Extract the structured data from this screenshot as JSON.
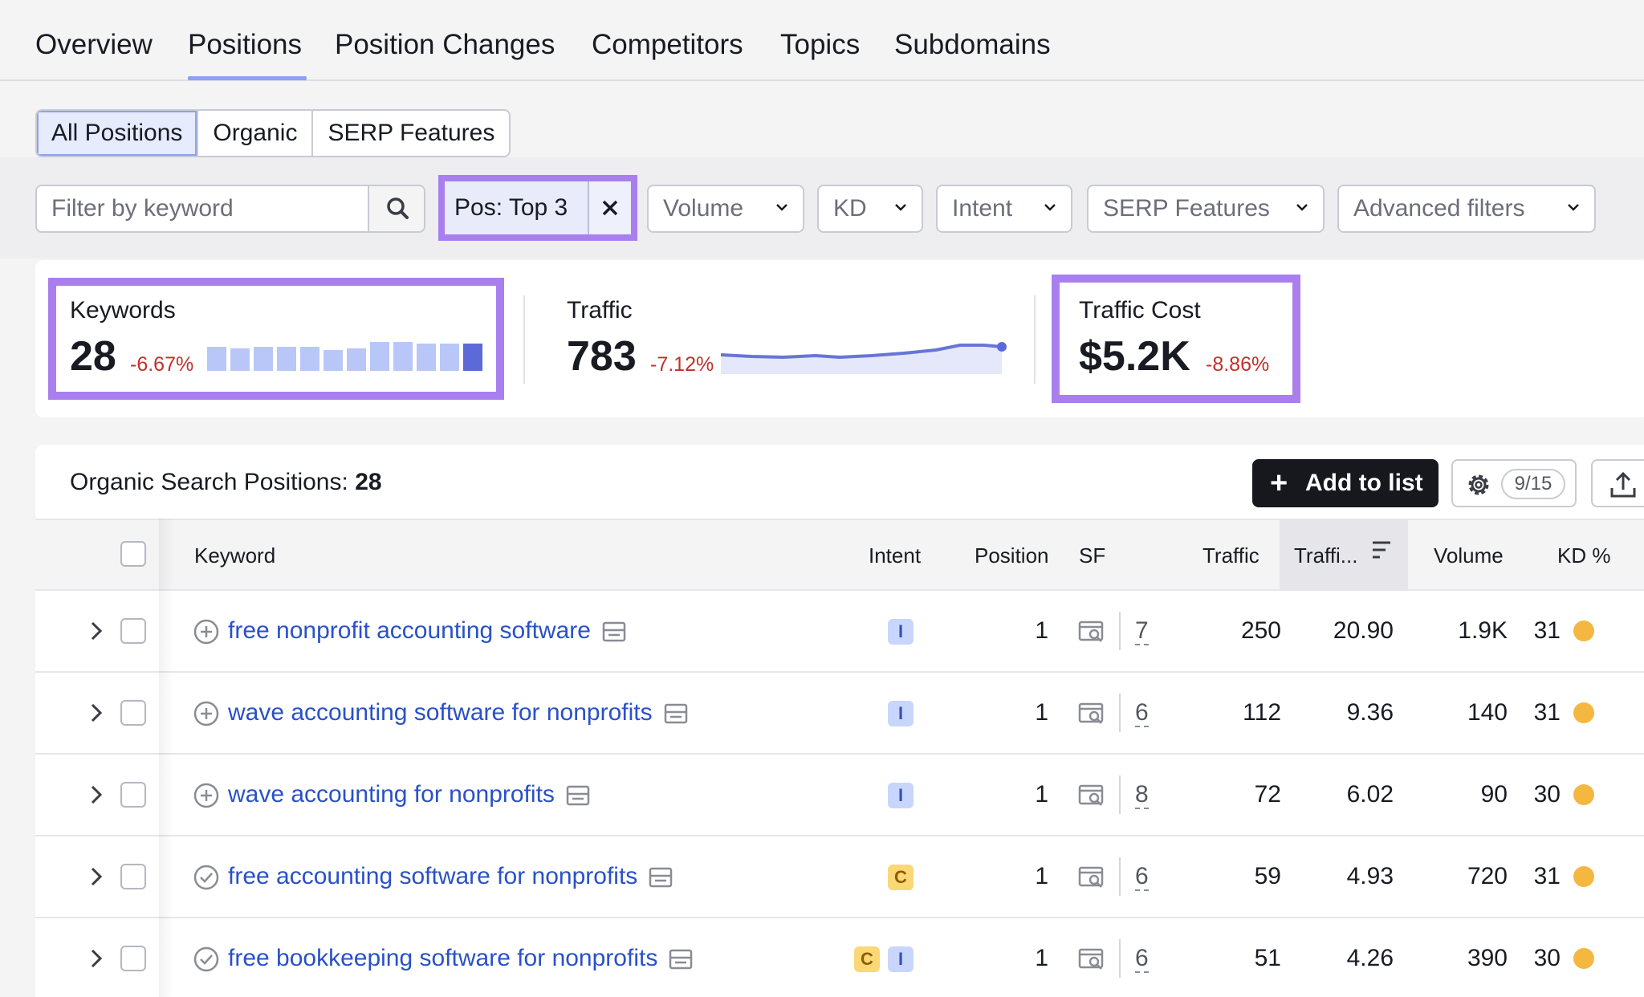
{
  "nav": {
    "tabs": [
      {
        "label": "Overview"
      },
      {
        "label": "Positions"
      },
      {
        "label": "Position Changes"
      },
      {
        "label": "Competitors"
      },
      {
        "label": "Topics"
      },
      {
        "label": "Subdomains"
      }
    ],
    "active": "Positions"
  },
  "segments": [
    "All Positions",
    "Organic",
    "SERP Features"
  ],
  "filters": {
    "keyword_placeholder": "Filter by keyword",
    "position_filter": "Pos: Top 3",
    "volume": "Volume",
    "kd": "KD",
    "intent": "Intent",
    "serp_features": "SERP Features",
    "advanced": "Advanced filters"
  },
  "summary": {
    "keywords": {
      "label": "Keywords",
      "value": "28",
      "delta": "-6.67%"
    },
    "traffic": {
      "label": "Traffic",
      "value": "783",
      "delta": "-7.12%"
    },
    "traffic_cost": {
      "label": "Traffic Cost",
      "value": "$5.2K",
      "delta": "-8.86%"
    },
    "colors": {
      "highlight": "#a97ff0",
      "bars": "#b9c7f8",
      "bar_last": "#5b6ad8",
      "line": "#6675d6",
      "negative": "#c2302a"
    }
  },
  "table": {
    "title": "Organic Search Positions:",
    "count": "28",
    "add_to_list": "Add to list",
    "columns_badge": "9/15",
    "headers": {
      "keyword": "Keyword",
      "intent": "Intent",
      "position": "Position",
      "sf": "SF",
      "traffic": "Traffic",
      "traffic_pct": "Traffi...",
      "volume": "Volume",
      "kd": "KD %"
    },
    "rows": [
      {
        "keyword": "free nonprofit accounting software",
        "status": "add",
        "intents": [
          "I"
        ],
        "position": "1",
        "sf": "7",
        "traffic": "250",
        "traffic_pct": "20.90",
        "volume": "1.9K",
        "kd": "31"
      },
      {
        "keyword": "wave accounting software for nonprofits",
        "status": "add",
        "intents": [
          "I"
        ],
        "position": "1",
        "sf": "6",
        "traffic": "112",
        "traffic_pct": "9.36",
        "volume": "140",
        "kd": "31"
      },
      {
        "keyword": "wave accounting for nonprofits",
        "status": "add",
        "intents": [
          "I"
        ],
        "position": "1",
        "sf": "8",
        "traffic": "72",
        "traffic_pct": "6.02",
        "volume": "90",
        "kd": "30"
      },
      {
        "keyword": "free accounting software for nonprofits",
        "status": "added",
        "intents": [
          "C"
        ],
        "position": "1",
        "sf": "6",
        "traffic": "59",
        "traffic_pct": "4.93",
        "volume": "720",
        "kd": "31"
      },
      {
        "keyword": "free bookkeeping software for nonprofits",
        "status": "added",
        "intents": [
          "C",
          "I"
        ],
        "position": "1",
        "sf": "6",
        "traffic": "51",
        "traffic_pct": "4.26",
        "volume": "390",
        "kd": "30"
      }
    ]
  }
}
